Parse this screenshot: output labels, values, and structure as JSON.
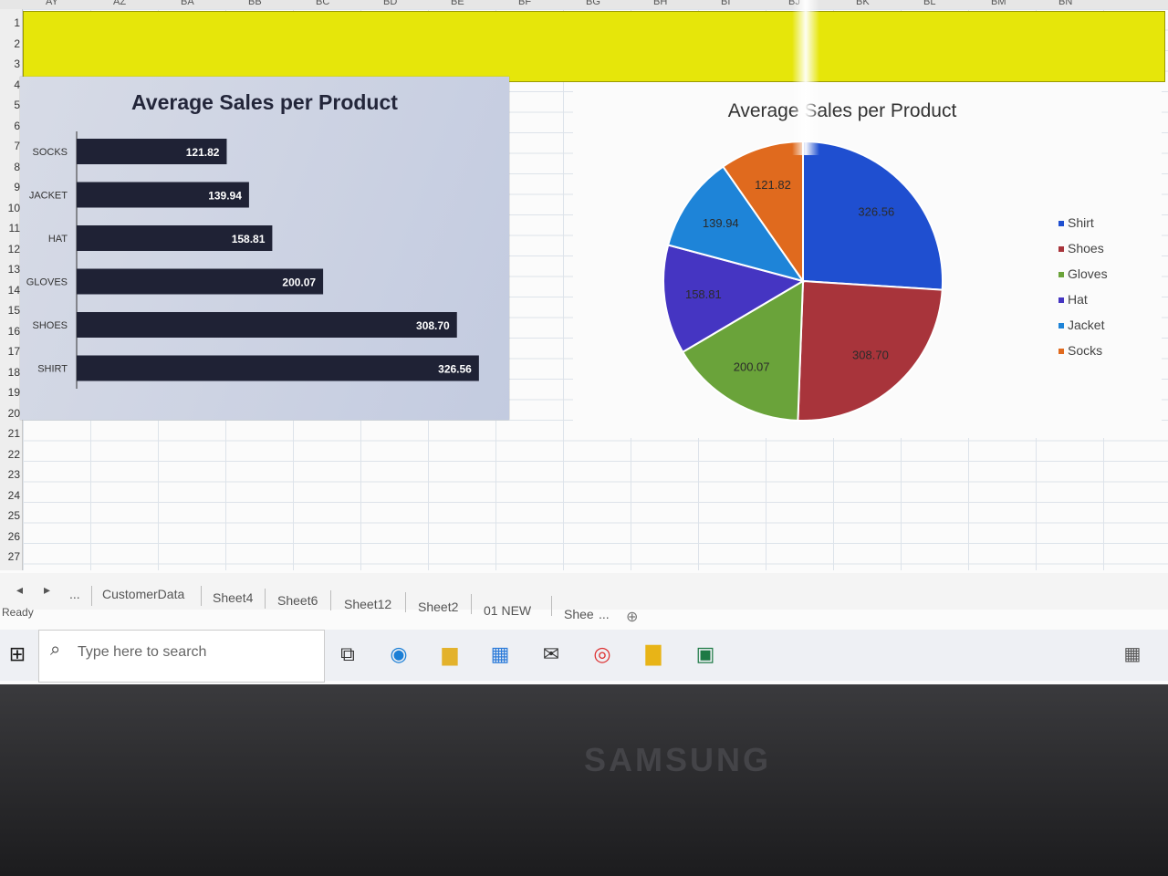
{
  "spreadsheet": {
    "column_headers": [
      "AY",
      "AZ",
      "BA",
      "BB",
      "BC",
      "BD",
      "BE",
      "BF",
      "BG",
      "BH",
      "BI",
      "BJ",
      "BK",
      "BL",
      "BM",
      "BN"
    ],
    "row_numbers": [
      "1",
      "2",
      "3",
      "4",
      "5",
      "6",
      "7",
      "8",
      "9",
      "10",
      "11",
      "12",
      "13",
      "14",
      "15",
      "16",
      "17",
      "18",
      "19",
      "20",
      "21",
      "22",
      "23",
      "24",
      "25",
      "26",
      "27"
    ],
    "status": "Ready",
    "sheet_tabs": [
      "CustomerData",
      "Sheet4",
      "Sheet6",
      "Sheet12",
      "Sheet2",
      "01 NEW",
      "Shee"
    ],
    "more_tabs": "...",
    "colors": {
      "banner": "#e6e60a",
      "grid": "#dde3ea"
    }
  },
  "chart_data": [
    {
      "type": "bar",
      "title": "Average  Sales per Product",
      "categories": [
        "SOCKS",
        "JACKET",
        "HAT",
        "GLOVES",
        "SHOES",
        "SHIRT"
      ],
      "values": [
        121.82,
        139.94,
        158.81,
        200.07,
        308.7,
        326.56
      ],
      "value_labels": [
        "121.82",
        "139.94",
        "158.81",
        "200.07",
        "308.70",
        "326.56"
      ],
      "orientation": "horizontal",
      "xlim": [
        0,
        400
      ],
      "colors": {
        "bar": "#1f2235",
        "plot": "#cfd5e4"
      }
    },
    {
      "type": "pie",
      "title": "Average  Sales per Product",
      "labels": [
        "Shirt",
        "Shoes",
        "Gloves",
        "Hat",
        "Jacket",
        "Socks"
      ],
      "values": [
        326.56,
        308.7,
        200.07,
        158.81,
        139.94,
        121.82
      ],
      "value_labels": [
        "326.56",
        "308.70",
        "200.07",
        "158.81",
        "139.94",
        "121.82"
      ],
      "colors": [
        "#1f4fd0",
        "#a8343b",
        "#6aa33a",
        "#4535c2",
        "#1e84d8",
        "#e06a1e"
      ],
      "legend_position": "right"
    }
  ],
  "taskbar": {
    "search_placeholder": "Type here to search",
    "icons": [
      "windows-start-icon",
      "search-icon",
      "task-view-icon",
      "edge-icon",
      "file-explorer-icon",
      "store-icon",
      "mail-icon",
      "chrome-icon",
      "power-bi-icon",
      "excel-icon"
    ]
  },
  "bezel": {
    "brand": "SAMSUNG"
  }
}
